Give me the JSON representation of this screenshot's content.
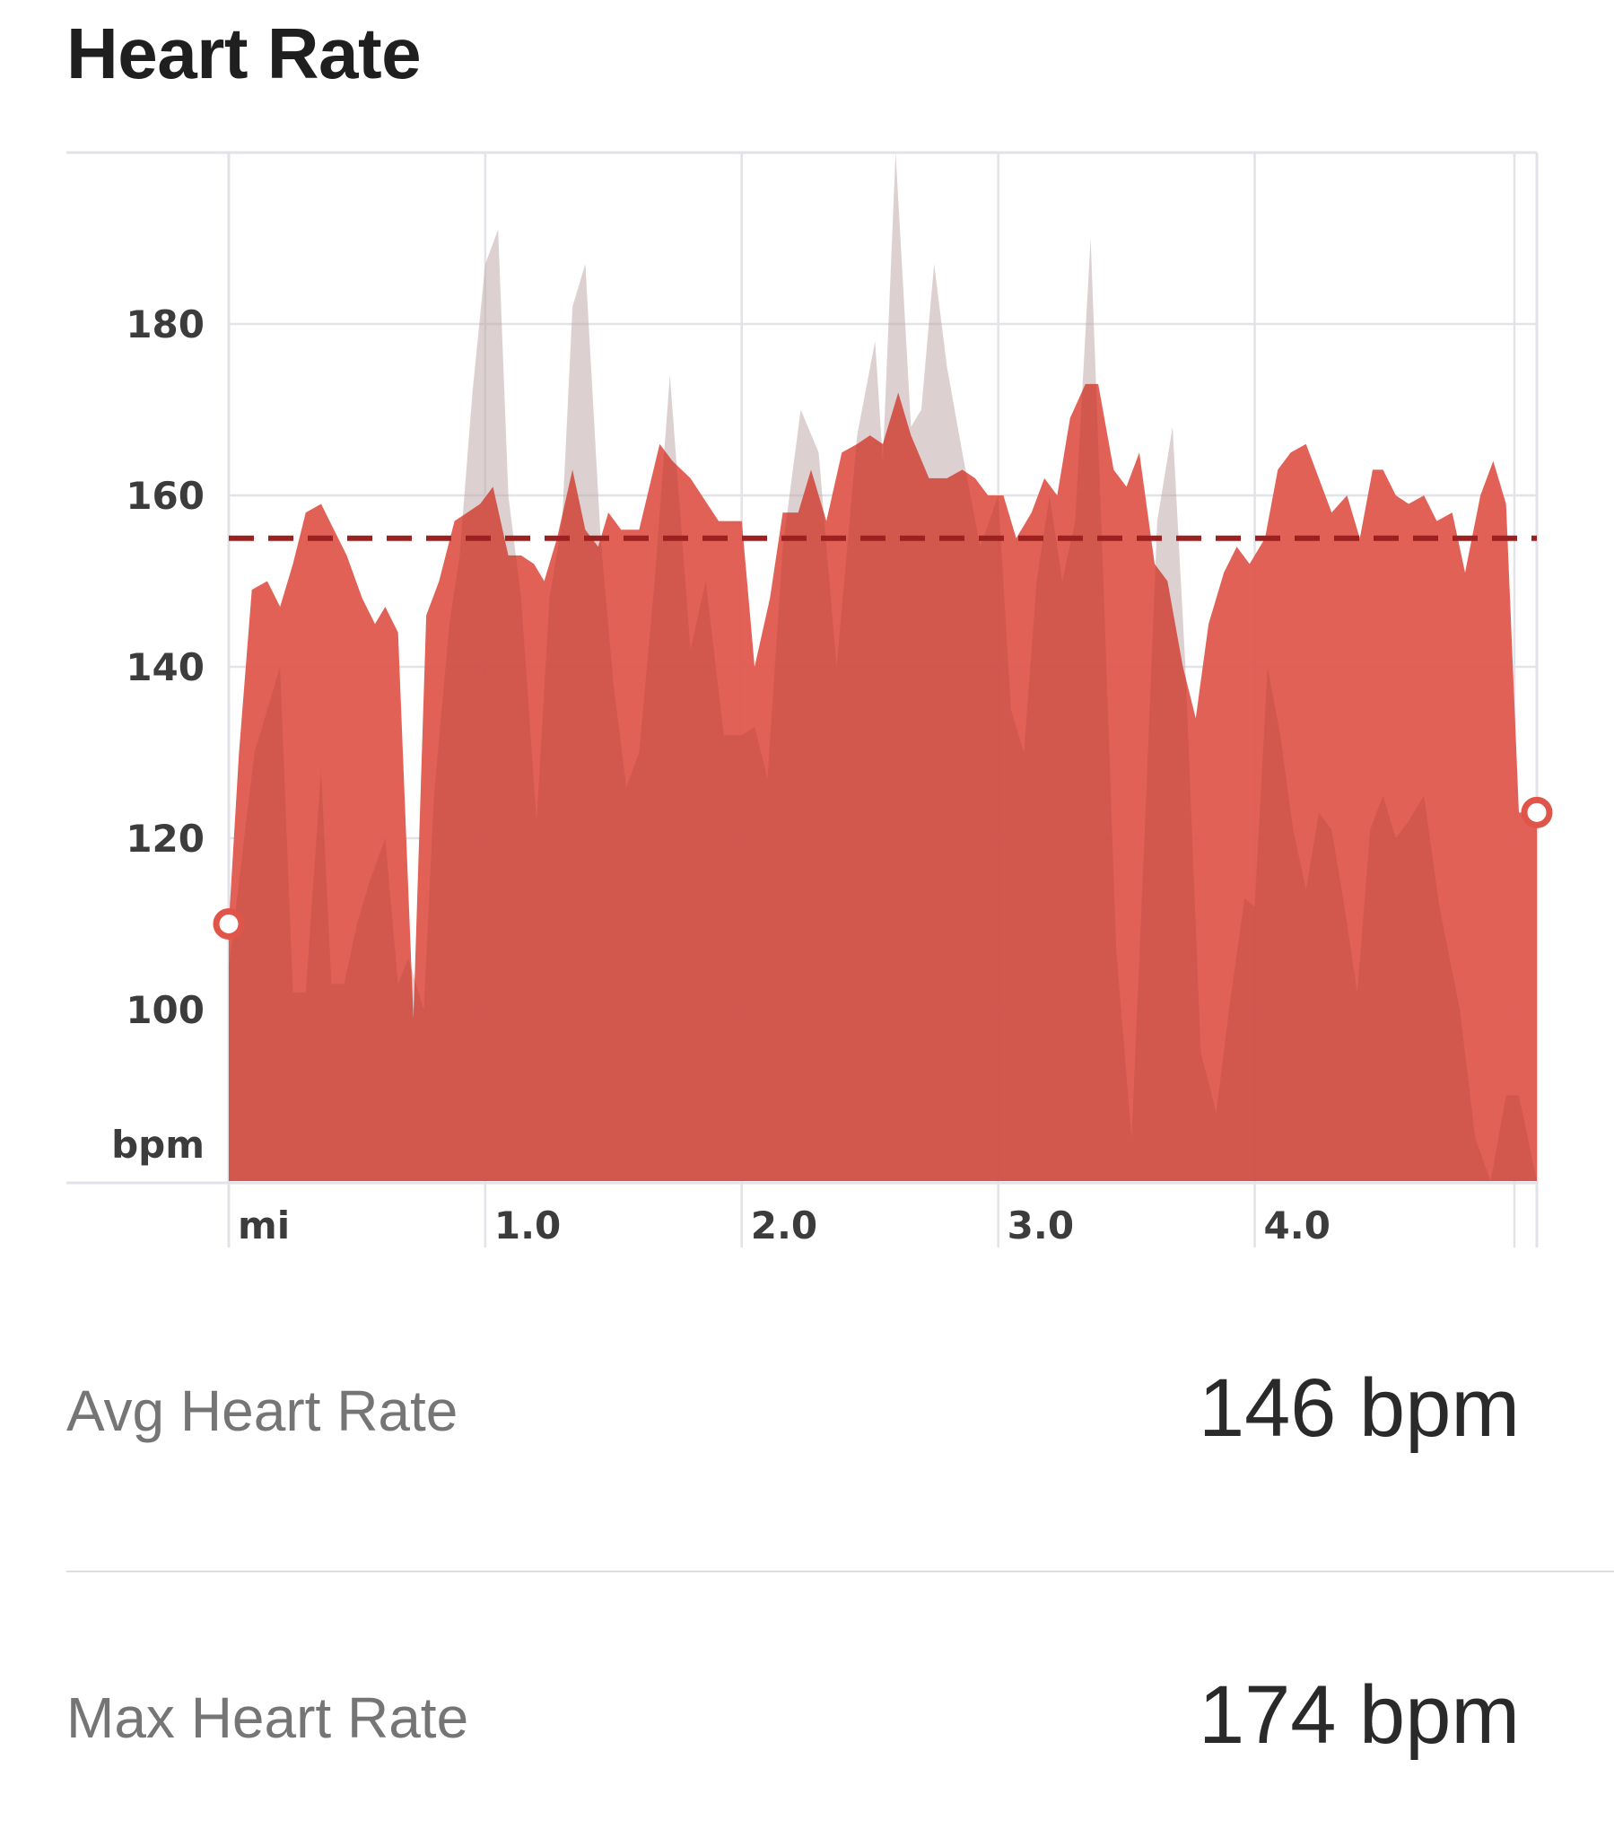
{
  "page": {
    "title": "Heart Rate"
  },
  "chart_data": {
    "type": "area",
    "xlabel": "mi",
    "ylabel": "bpm",
    "x_ticks": [
      "1.0",
      "2.0",
      "3.0",
      "4.0"
    ],
    "y_ticks": [
      100,
      120,
      140,
      160,
      180
    ],
    "xlim": [
      0,
      5.1
    ],
    "ylim": [
      80,
      200
    ],
    "grid": true,
    "reference_line": {
      "value": 155,
      "style": "dashed"
    },
    "colors": {
      "series": "#e0554a",
      "background_series": "#d8d8d8",
      "reference": "#9b2121",
      "marker": "#e0554a"
    },
    "series": [
      {
        "x": [
          0.0,
          0.04,
          0.09,
          0.15,
          0.2,
          0.25,
          0.3,
          0.36,
          0.41,
          0.46,
          0.52,
          0.57,
          0.61,
          0.66,
          0.72,
          0.77,
          0.82,
          0.88,
          0.93,
          0.98,
          1.03,
          1.09,
          1.14,
          1.19,
          1.23,
          1.28,
          1.34,
          1.39,
          1.44,
          1.48,
          1.53,
          1.6,
          1.68,
          1.73,
          1.8,
          1.91,
          2.0,
          2.05,
          2.11,
          2.16,
          2.22,
          2.27,
          2.33,
          2.39,
          2.45,
          2.5,
          2.55,
          2.61,
          2.66,
          2.73,
          2.8,
          2.86,
          2.91,
          2.96,
          3.02,
          3.07,
          3.13,
          3.18,
          3.23,
          3.28,
          3.34,
          3.39,
          3.45,
          3.5,
          3.55,
          3.61,
          3.66,
          3.72,
          3.77,
          3.82,
          3.88,
          3.93,
          3.98,
          4.04,
          4.09,
          4.14,
          4.2,
          4.25,
          4.3,
          4.36,
          4.41,
          4.46,
          4.5,
          4.55,
          4.6,
          4.66,
          4.71,
          4.77,
          4.82,
          4.88,
          4.93,
          4.98,
          5.03,
          5.1
        ],
        "y": [
          110,
          130,
          149,
          150,
          147,
          152,
          158,
          159,
          156,
          153,
          148,
          145,
          147,
          144,
          99,
          146,
          150,
          157,
          158,
          159,
          161,
          153,
          153,
          152,
          150,
          155,
          163,
          156,
          154,
          158,
          156,
          156,
          166,
          164,
          162,
          157,
          157,
          140,
          148,
          158,
          158,
          163,
          157,
          165,
          166,
          167,
          166,
          172,
          167,
          162,
          162,
          163,
          162,
          160,
          160,
          155,
          158,
          162,
          160,
          169,
          173,
          173,
          163,
          161,
          165,
          152,
          150,
          140,
          134,
          145,
          151,
          154,
          152,
          155,
          163,
          165,
          166,
          162,
          158,
          160,
          155,
          163,
          163,
          160,
          159,
          160,
          157,
          158,
          151,
          160,
          164,
          159,
          123,
          123
        ]
      },
      {
        "x": [
          0.0,
          0.1,
          0.2,
          0.25,
          0.3,
          0.36,
          0.4,
          0.45,
          0.5,
          0.55,
          0.61,
          0.66,
          0.7,
          0.76,
          0.8,
          0.86,
          0.9,
          0.95,
          1.0,
          1.05,
          1.09,
          1.14,
          1.2,
          1.25,
          1.3,
          1.34,
          1.39,
          1.45,
          1.5,
          1.55,
          1.6,
          1.66,
          1.72,
          1.8,
          1.86,
          1.93,
          2.0,
          2.05,
          2.1,
          2.16,
          2.23,
          2.3,
          2.37,
          2.45,
          2.52,
          2.55,
          2.6,
          2.66,
          2.7,
          2.75,
          2.8,
          2.86,
          2.93,
          3.0,
          3.05,
          3.1,
          3.15,
          3.2,
          3.25,
          3.3,
          3.36,
          3.41,
          3.46,
          3.52,
          3.57,
          3.62,
          3.68,
          3.73,
          3.79,
          3.85,
          3.9,
          3.96,
          4.0,
          4.05,
          4.1,
          4.15,
          4.2,
          4.25,
          4.3,
          4.35,
          4.4,
          4.45,
          4.5,
          4.55,
          4.6,
          4.66,
          4.72,
          4.8,
          4.86,
          4.92,
          4.98,
          5.03,
          5.1
        ],
        "y": [
          105,
          130,
          140,
          102,
          102,
          128,
          103,
          103,
          110,
          115,
          120,
          103,
          106,
          100,
          125,
          145,
          153,
          172,
          187,
          191,
          160,
          148,
          122,
          148,
          157,
          182,
          187,
          155,
          138,
          126,
          130,
          150,
          174,
          142,
          150,
          132,
          132,
          133,
          127,
          154,
          170,
          165,
          140,
          167,
          178,
          164,
          200,
          168,
          170,
          187,
          175,
          165,
          154,
          160,
          135,
          130,
          150,
          160,
          150,
          157,
          190,
          150,
          107,
          85,
          120,
          157,
          168,
          140,
          95,
          88,
          100,
          113,
          112,
          140,
          132,
          121,
          114,
          123,
          121,
          112,
          102,
          121,
          125,
          120,
          122,
          125,
          112,
          100,
          85,
          80,
          90,
          90,
          80
        ]
      }
    ]
  },
  "stats": [
    {
      "label": "Avg Heart Rate",
      "value": "146 bpm"
    },
    {
      "label": "Max Heart Rate",
      "value": "174 bpm"
    }
  ]
}
